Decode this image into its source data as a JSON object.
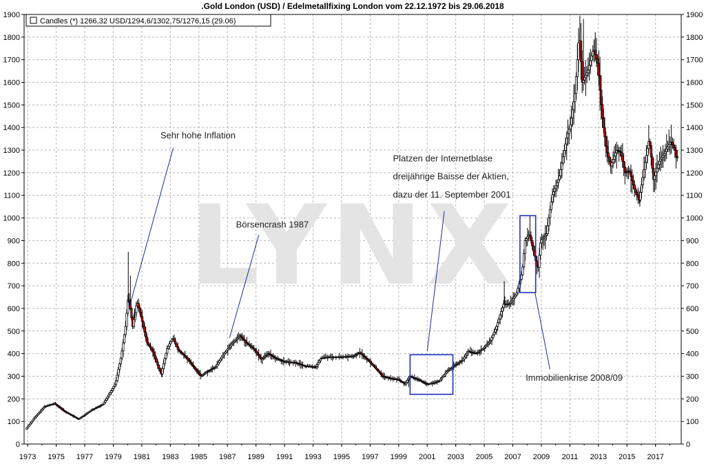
{
  "chart_data": {
    "type": "candlestick",
    "title": ".Gold London (USD) / Edelmetallfixing London vom 22.12.1972 bis 29.06.2018",
    "legend_label": "Candles (*) 1266,32 USD/1294,6/1302,75/1276,15 (29.06)",
    "watermark": "LYNX",
    "ylim": [
      0,
      1900
    ],
    "yticks": [
      0,
      100,
      200,
      300,
      400,
      500,
      600,
      700,
      800,
      900,
      1000,
      1100,
      1200,
      1300,
      1400,
      1500,
      1600,
      1700,
      1800,
      1900
    ],
    "xlim": [
      1972.75,
      2018.8
    ],
    "xticks": [
      1973,
      1975,
      1977,
      1979,
      1981,
      1983,
      1985,
      1987,
      1989,
      1991,
      1993,
      1995,
      1997,
      1999,
      2001,
      2003,
      2005,
      2007,
      2009,
      2011,
      2013,
      2015,
      2017
    ],
    "grid": true,
    "legend_position": "top-left",
    "colors": {
      "up": "#ffffff",
      "down": "#cc1111",
      "frame": "#000000",
      "box": "#1f2fbf",
      "pointer": "#1a2a9a",
      "grid": "#b4b4b4"
    },
    "price_path": [
      [
        1972.9,
        65
      ],
      [
        1973.5,
        115
      ],
      [
        1974.2,
        165
      ],
      [
        1974.9,
        180
      ],
      [
        1975.6,
        145
      ],
      [
        1976.6,
        110
      ],
      [
        1977.5,
        150
      ],
      [
        1978.3,
        175
      ],
      [
        1978.8,
        225
      ],
      [
        1979.2,
        270
      ],
      [
        1979.6,
        390
      ],
      [
        1979.9,
        520
      ],
      [
        1980.1,
        660
      ],
      [
        1980.4,
        520
      ],
      [
        1980.7,
        630
      ],
      [
        1981.0,
        560
      ],
      [
        1981.4,
        450
      ],
      [
        1981.8,
        410
      ],
      [
        1982.2,
        340
      ],
      [
        1982.4,
        310
      ],
      [
        1982.8,
        420
      ],
      [
        1983.2,
        470
      ],
      [
        1983.6,
        415
      ],
      [
        1984.2,
        380
      ],
      [
        1984.8,
        330
      ],
      [
        1985.2,
        300
      ],
      [
        1985.6,
        320
      ],
      [
        1986.2,
        340
      ],
      [
        1986.8,
        400
      ],
      [
        1987.3,
        440
      ],
      [
        1987.9,
        480
      ],
      [
        1988.4,
        445
      ],
      [
        1988.9,
        420
      ],
      [
        1989.4,
        375
      ],
      [
        1989.9,
        400
      ],
      [
        1990.4,
        380
      ],
      [
        1991.0,
        365
      ],
      [
        1991.8,
        360
      ],
      [
        1992.5,
        345
      ],
      [
        1993.2,
        340
      ],
      [
        1993.6,
        380
      ],
      [
        1994.2,
        385
      ],
      [
        1995.0,
        385
      ],
      [
        1995.9,
        390
      ],
      [
        1996.3,
        405
      ],
      [
        1996.9,
        370
      ],
      [
        1997.5,
        330
      ],
      [
        1997.9,
        300
      ],
      [
        1998.5,
        290
      ],
      [
        1999.0,
        285
      ],
      [
        1999.5,
        265
      ],
      [
        1999.8,
        300
      ],
      [
        2000.4,
        285
      ],
      [
        2001.0,
        265
      ],
      [
        2001.5,
        270
      ],
      [
        2001.9,
        280
      ],
      [
        2002.4,
        320
      ],
      [
        2002.9,
        345
      ],
      [
        2003.5,
        370
      ],
      [
        2003.9,
        410
      ],
      [
        2004.5,
        400
      ],
      [
        2005.0,
        425
      ],
      [
        2005.5,
        460
      ],
      [
        2005.9,
        520
      ],
      [
        2006.4,
        620
      ],
      [
        2006.8,
        620
      ],
      [
        2007.3,
        665
      ],
      [
        2007.7,
        760
      ],
      [
        2007.9,
        900
      ],
      [
        2008.2,
        930
      ],
      [
        2008.5,
        850
      ],
      [
        2008.8,
        770
      ],
      [
        2009.0,
        900
      ],
      [
        2009.4,
        930
      ],
      [
        2009.8,
        1100
      ],
      [
        2010.3,
        1180
      ],
      [
        2010.8,
        1350
      ],
      [
        2011.1,
        1420
      ],
      [
        2011.4,
        1550
      ],
      [
        2011.7,
        1820
      ],
      [
        2011.9,
        1600
      ],
      [
        2012.3,
        1650
      ],
      [
        2012.7,
        1750
      ],
      [
        2013.0,
        1680
      ],
      [
        2013.3,
        1450
      ],
      [
        2013.6,
        1300
      ],
      [
        2013.9,
        1230
      ],
      [
        2014.3,
        1300
      ],
      [
        2014.6,
        1290
      ],
      [
        2014.9,
        1200
      ],
      [
        2015.2,
        1210
      ],
      [
        2015.6,
        1120
      ],
      [
        2015.9,
        1080
      ],
      [
        2016.3,
        1240
      ],
      [
        2016.6,
        1350
      ],
      [
        2016.9,
        1170
      ],
      [
        2017.3,
        1250
      ],
      [
        2017.7,
        1290
      ],
      [
        2018.1,
        1340
      ],
      [
        2018.4,
        1300
      ],
      [
        2018.5,
        1266
      ]
    ],
    "spikes": [
      [
        1980.05,
        850
      ],
      [
        1980.2,
        745
      ],
      [
        1980.5,
        600
      ],
      [
        2011.7,
        1895
      ],
      [
        2011.95,
        1880
      ],
      [
        2012.7,
        1790
      ],
      [
        2006.4,
        720
      ],
      [
        2008.2,
        1010
      ],
      [
        1982.4,
        295
      ],
      [
        1999.7,
        252
      ],
      [
        2015.9,
        1050
      ]
    ],
    "annotations": [
      {
        "text": "Sehr hohe Inflation",
        "x": 1980.1,
        "y": 600,
        "label_x": 1982.3,
        "label_y": 1352
      },
      {
        "text": "Börsencrash 1987",
        "x": 1987.15,
        "y": 470,
        "label_x": 1987.6,
        "label_y": 958
      },
      {
        "text": "Platzen der Internetblase",
        "x": 2001.0,
        "y": 410,
        "label_x": 1998.6,
        "label_y": 1250
      },
      {
        "text": "dreijährige Baisse der Aktien,",
        "x": null,
        "y": null,
        "label_x": 1998.6,
        "label_y": 1170
      },
      {
        "text": "dazu der 11. September 2001",
        "x": null,
        "y": null,
        "label_x": 1998.6,
        "label_y": 1090
      },
      {
        "text": "Immobilienkrise 2008/09",
        "x": 2008.55,
        "y": 670,
        "label_x": 2007.9,
        "label_y": 280
      }
    ],
    "boxes": [
      {
        "x0": 1999.8,
        "x1": 2002.8,
        "y0": 220,
        "y1": 395
      },
      {
        "x0": 2007.5,
        "x1": 2008.6,
        "y0": 670,
        "y1": 1010
      }
    ]
  }
}
